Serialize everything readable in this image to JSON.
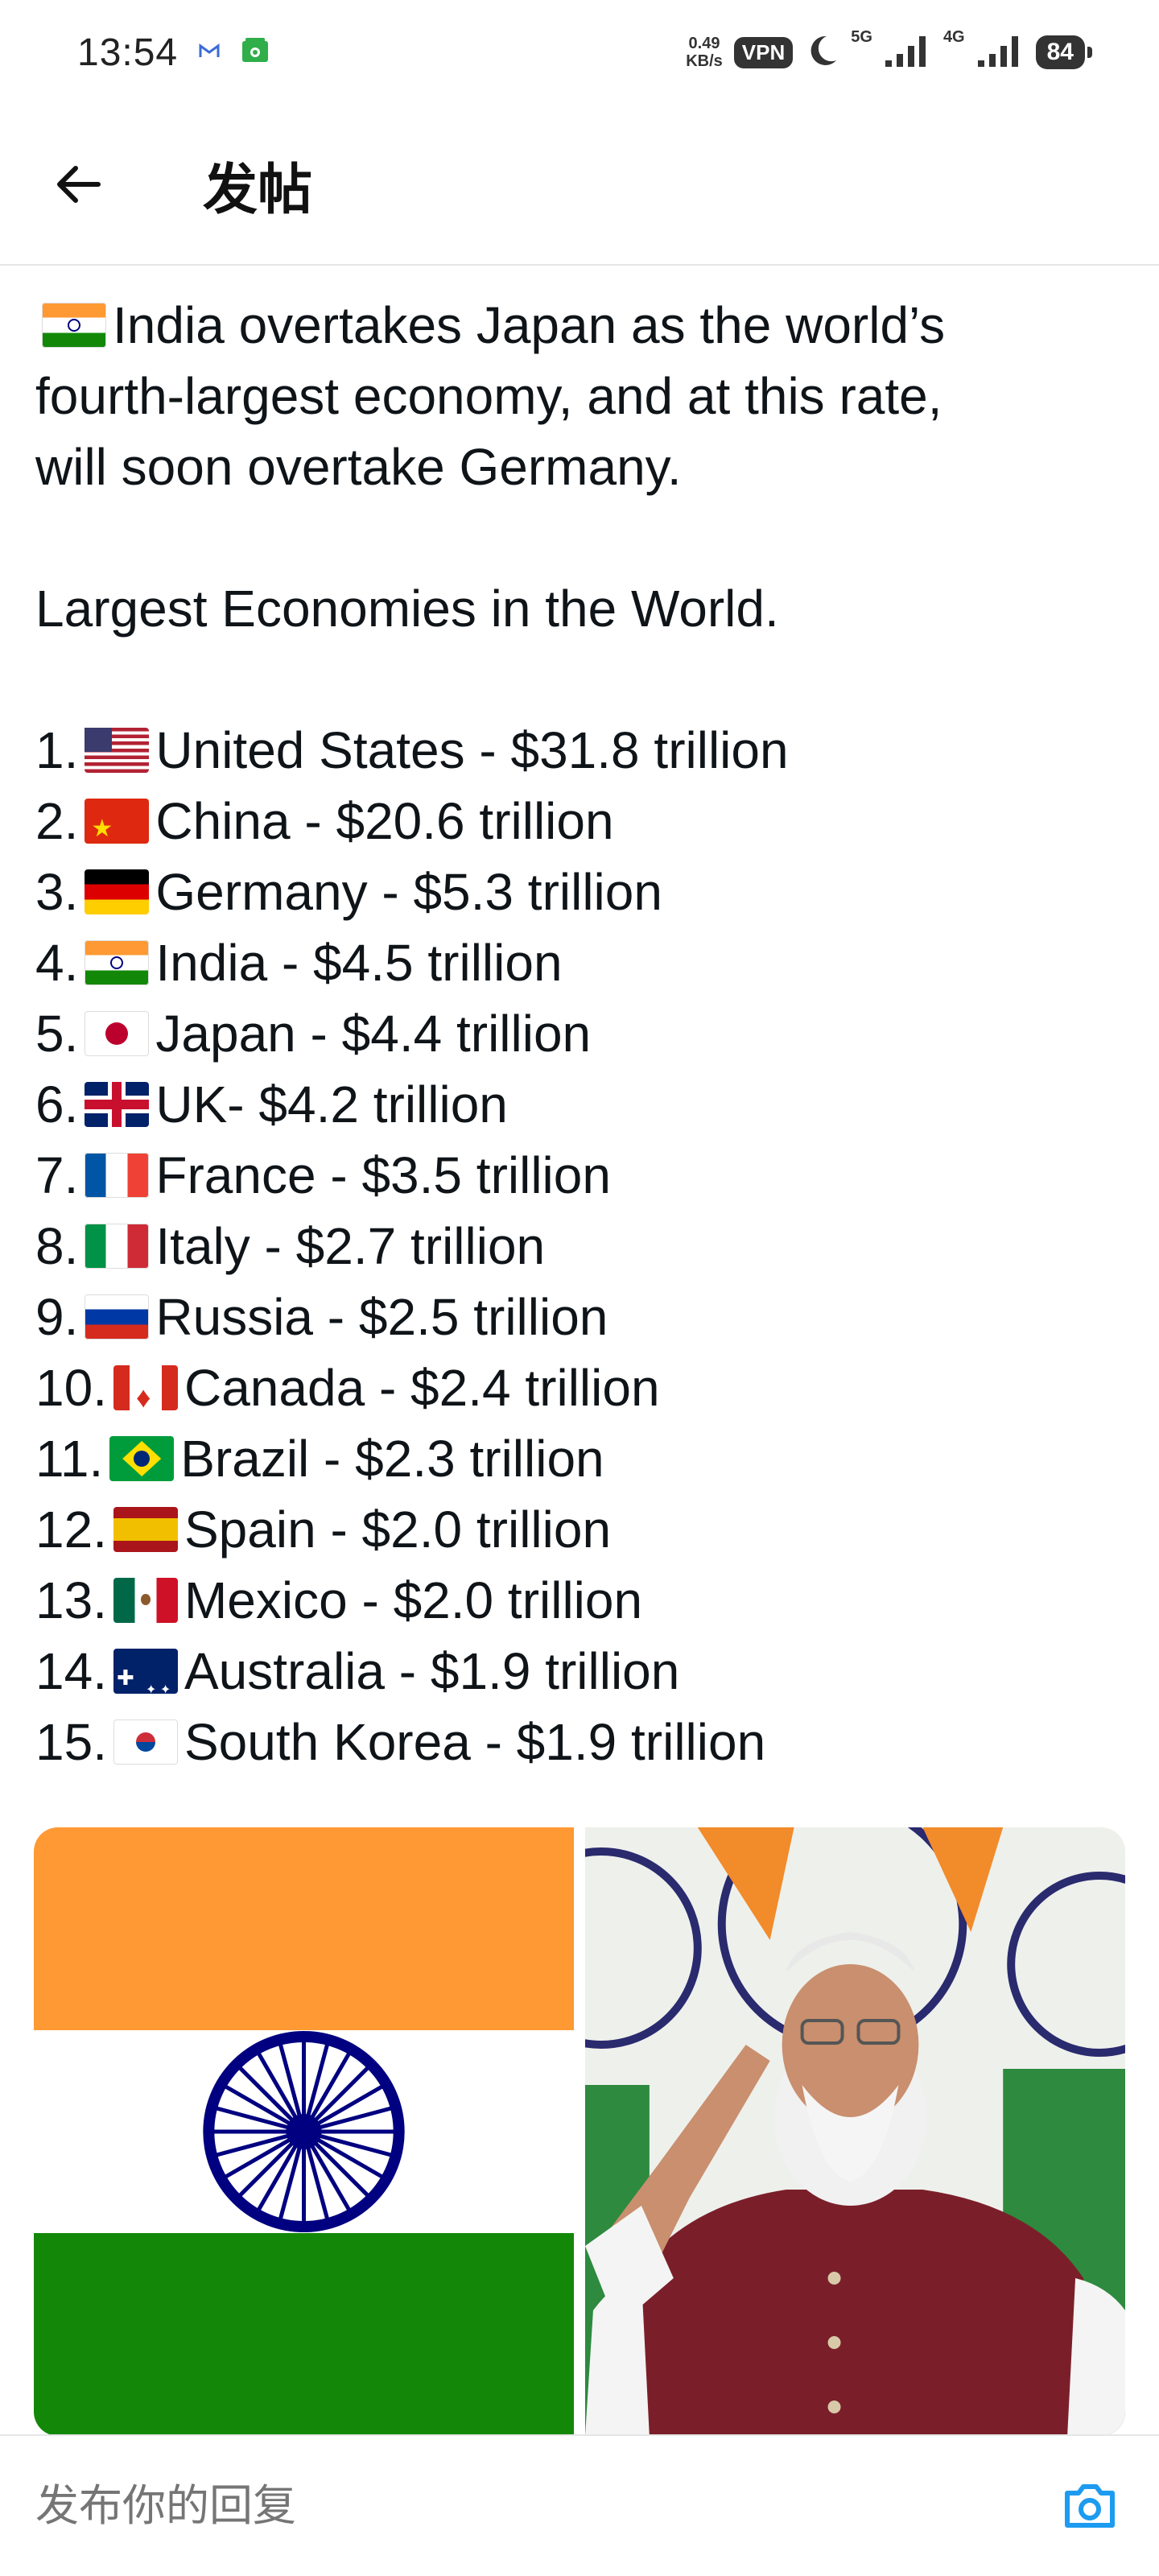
{
  "status_bar": {
    "time": "13:54",
    "net_speed_value": "0.49",
    "net_speed_unit": "KB/s",
    "vpn": "VPN",
    "signal_1": "5G",
    "signal_2": "4G",
    "battery": "84",
    "icons": [
      "gmail-icon",
      "security-app-icon",
      "moon-icon",
      "signal-bars-icon",
      "battery-icon"
    ]
  },
  "header": {
    "title": "发帖",
    "back_icon": "arrow-left-icon"
  },
  "post": {
    "intro_line1": "India overtakes Japan as the world’s",
    "intro_line2": "fourth-largest economy, and at this rate,",
    "intro_line3": "will soon overtake Germany.",
    "subtitle": "Largest Economies in the World.",
    "economies": [
      {
        "rank": "1.",
        "flag": "us",
        "text": "United States - $31.8 trillion"
      },
      {
        "rank": "2.",
        "flag": "cn",
        "text": "China - $20.6 trillion"
      },
      {
        "rank": "3.",
        "flag": "de",
        "text": "Germany - $5.3 trillion"
      },
      {
        "rank": "4.",
        "flag": "in",
        "text": "India - $4.5 trillion"
      },
      {
        "rank": "5.",
        "flag": "jp",
        "text": "Japan - $4.4 trillion"
      },
      {
        "rank": "6.",
        "flag": "uk",
        "text": "UK- $4.2 trillion"
      },
      {
        "rank": "7.",
        "flag": "fr",
        "text": "France - $3.5 trillion"
      },
      {
        "rank": "8.",
        "flag": "it",
        "text": "Italy - $2.7 trillion"
      },
      {
        "rank": "9.",
        "flag": "ru",
        "text": "Russia - $2.5 trillion"
      },
      {
        "rank": "10.",
        "flag": "ca",
        "text": "Canada - $2.4 trillion"
      },
      {
        "rank": "11.",
        "flag": "br",
        "text": "Brazil - $2.3 trillion"
      },
      {
        "rank": "12.",
        "flag": "es",
        "text": "Spain - $2.0 trillion"
      },
      {
        "rank": "13.",
        "flag": "mx",
        "text": "Mexico - $2.0 trillion"
      },
      {
        "rank": "14.",
        "flag": "au",
        "text": "Australia - $1.9 trillion"
      },
      {
        "rank": "15.",
        "flag": "kr",
        "text": "South Korea - $1.9 trillion"
      }
    ]
  },
  "media": {
    "images": [
      "india-flag-image",
      "leader-saluting-photo"
    ]
  },
  "reply": {
    "placeholder": "发布你的回复",
    "camera_icon": "camera-icon"
  },
  "colors": {
    "accent": "#1d9bf0",
    "saffron": "#ff9933",
    "india_green": "#138808",
    "chakra_blue": "#000080"
  }
}
